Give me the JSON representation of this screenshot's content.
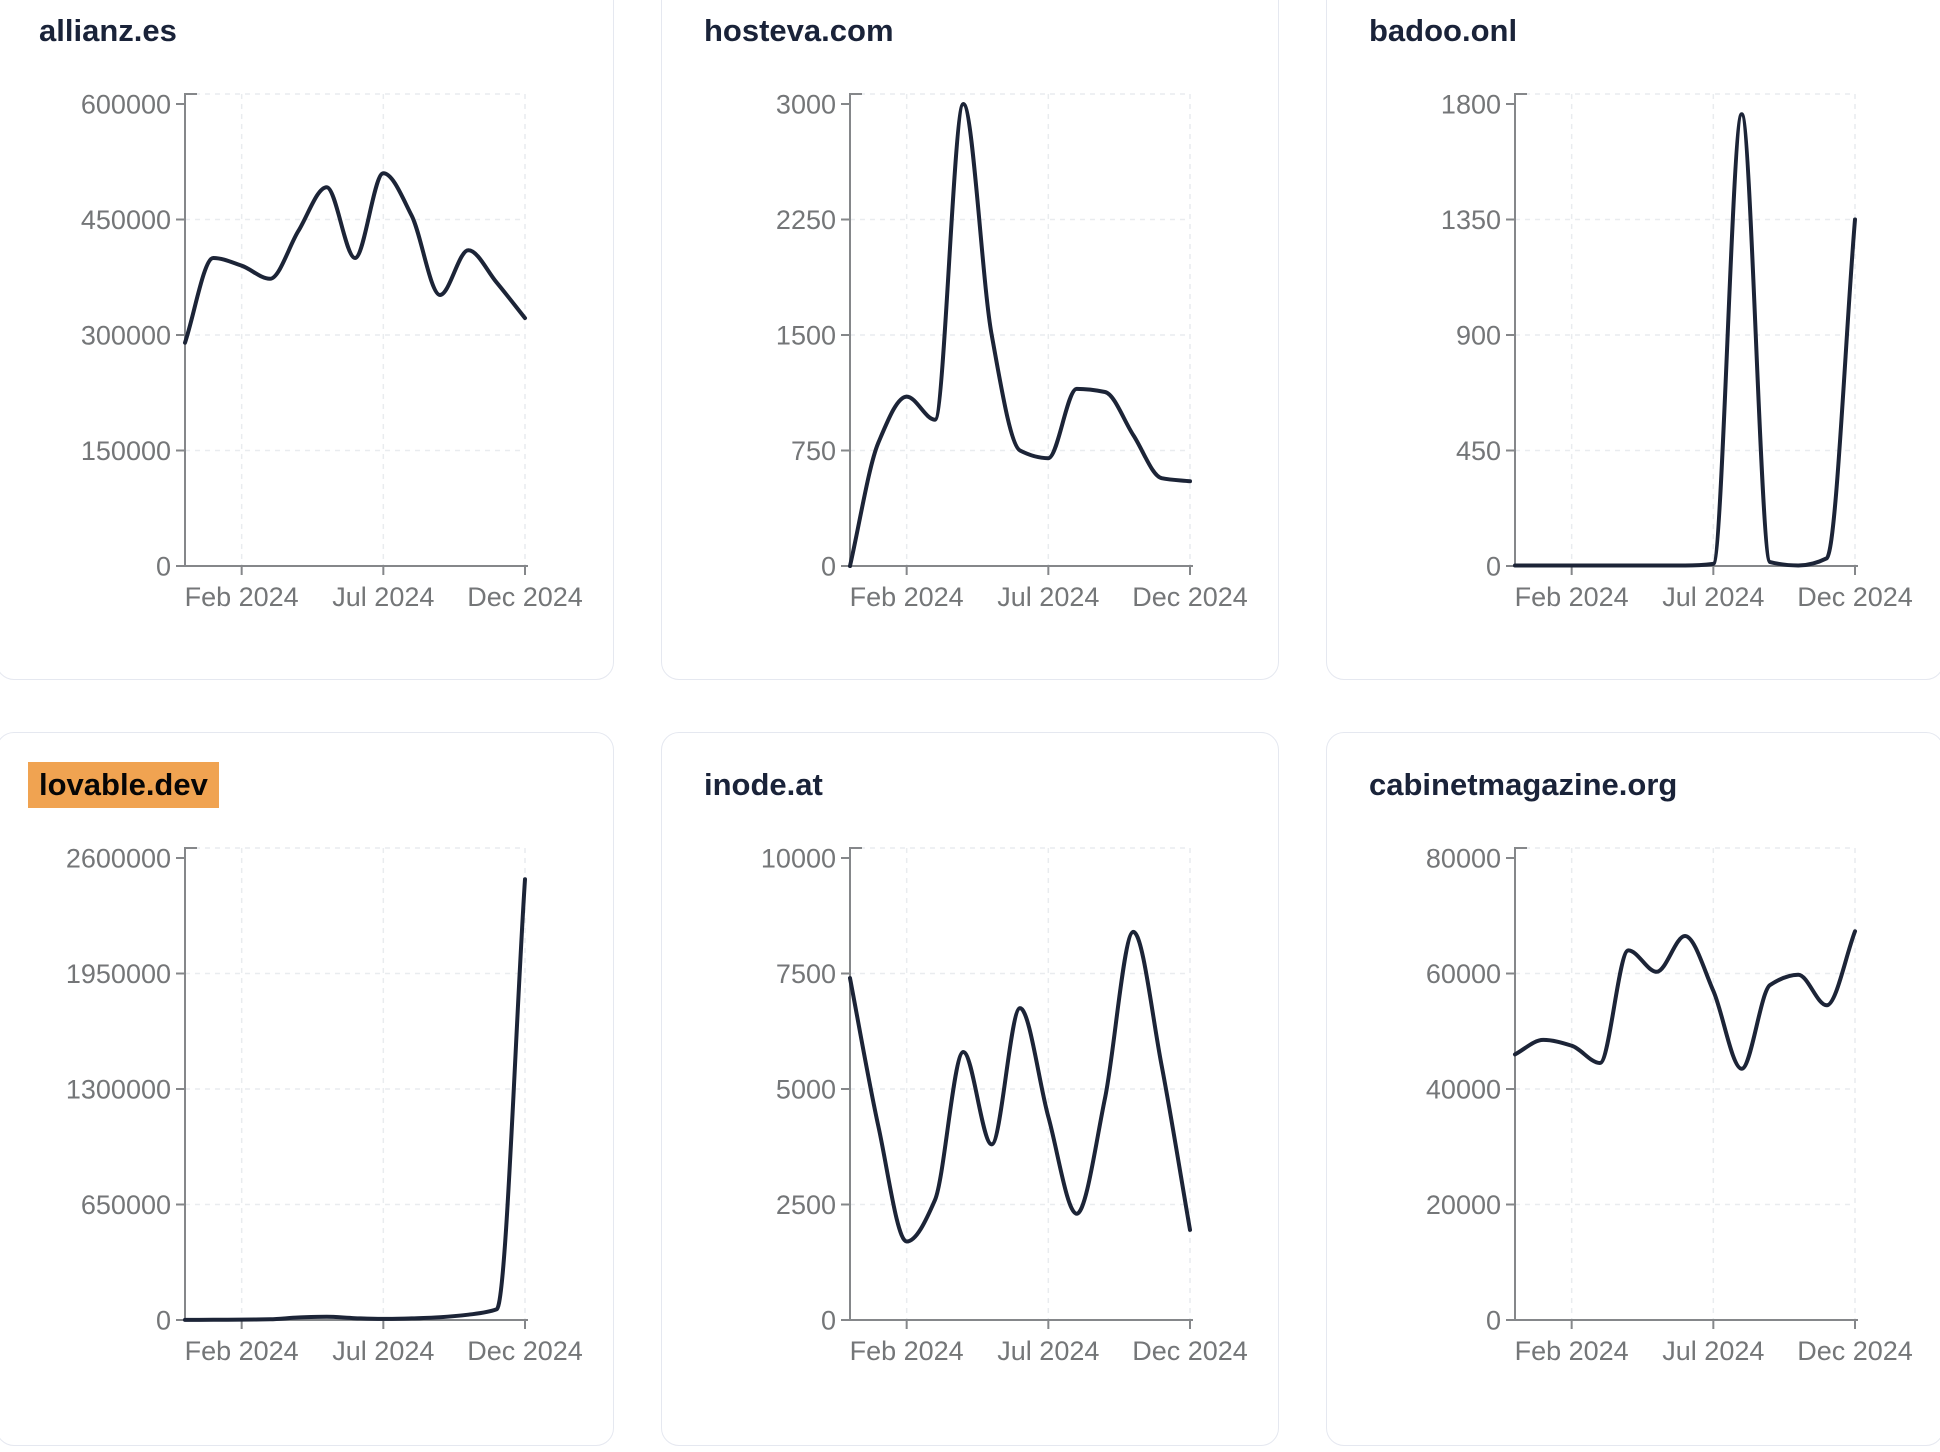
{
  "page": {
    "background_color": "#ffffff",
    "card_background_color": "#ffffff",
    "card_border_color": "#e5e8f0"
  },
  "styles": {
    "line_color": "#1c2437",
    "axis_color": "#85878a",
    "grid_color": "#e9ecef",
    "tick_label_color": "#747678",
    "title_color": "#1a2339",
    "highlight_color": "#f0a351"
  },
  "chart_data": [
    {
      "type": "line",
      "title": "allianz.es",
      "highlighted": false,
      "x_tick_labels": [
        "Feb 2024",
        "Jul 2024",
        "Dec 2024"
      ],
      "x_tick_indices": [
        2,
        7,
        12
      ],
      "y_ticks": [
        600000,
        450000,
        300000,
        150000,
        0
      ],
      "ylim": [
        0,
        600000
      ],
      "grid": true,
      "values": [
        290000,
        400000,
        390000,
        373000,
        435000,
        492000,
        400000,
        510000,
        455000,
        352000,
        410000,
        368000,
        322000
      ]
    },
    {
      "type": "line",
      "title": "hosteva.com",
      "highlighted": false,
      "x_tick_labels": [
        "Feb 2024",
        "Jul 2024",
        "Dec 2024"
      ],
      "x_tick_indices": [
        2,
        7,
        12
      ],
      "y_ticks": [
        3000,
        2250,
        1500,
        750,
        0
      ],
      "ylim": [
        0,
        3000
      ],
      "grid": true,
      "values": [
        0,
        800,
        1100,
        950,
        3000,
        1500,
        750,
        700,
        1150,
        1130,
        850,
        570,
        550
      ]
    },
    {
      "type": "line",
      "title": "badoo.onl",
      "highlighted": false,
      "x_tick_labels": [
        "Feb 2024",
        "Jul 2024",
        "Dec 2024"
      ],
      "x_tick_indices": [
        2,
        7,
        12
      ],
      "y_ticks": [
        1800,
        1350,
        900,
        450,
        0
      ],
      "ylim": [
        0,
        1800
      ],
      "grid": true,
      "values": [
        2,
        2,
        2,
        2,
        2,
        2,
        2,
        8,
        1760,
        15,
        2,
        30,
        1350
      ]
    },
    {
      "type": "line",
      "title": "lovable.dev",
      "highlighted": true,
      "x_tick_labels": [
        "Feb 2024",
        "Jul 2024",
        "Dec 2024"
      ],
      "x_tick_indices": [
        2,
        7,
        12
      ],
      "y_ticks": [
        2600000,
        1950000,
        1300000,
        650000,
        0
      ],
      "ylim": [
        0,
        2600000
      ],
      "grid": true,
      "values": [
        800,
        1200,
        2500,
        4000,
        14000,
        18000,
        10000,
        6000,
        9000,
        16000,
        30000,
        60000,
        2480000
      ]
    },
    {
      "type": "line",
      "title": "inode.at",
      "highlighted": false,
      "x_tick_labels": [
        "Feb 2024",
        "Jul 2024",
        "Dec 2024"
      ],
      "x_tick_indices": [
        2,
        7,
        12
      ],
      "y_ticks": [
        10000,
        7500,
        5000,
        2500,
        0
      ],
      "ylim": [
        0,
        10000
      ],
      "grid": true,
      "values": [
        7400,
        4200,
        1700,
        2600,
        5800,
        3800,
        6750,
        4400,
        2300,
        4800,
        8400,
        5500,
        1950
      ]
    },
    {
      "type": "line",
      "title": "cabinetmagazine.org",
      "highlighted": false,
      "x_tick_labels": [
        "Feb 2024",
        "Jul 2024",
        "Dec 2024"
      ],
      "x_tick_indices": [
        2,
        7,
        12
      ],
      "y_ticks": [
        80000,
        60000,
        40000,
        20000,
        0
      ],
      "ylim": [
        0,
        80000
      ],
      "grid": true,
      "values": [
        46000,
        48500,
        47500,
        44500,
        64000,
        60300,
        66500,
        57000,
        43500,
        58000,
        59800,
        54500,
        67300
      ]
    }
  ]
}
